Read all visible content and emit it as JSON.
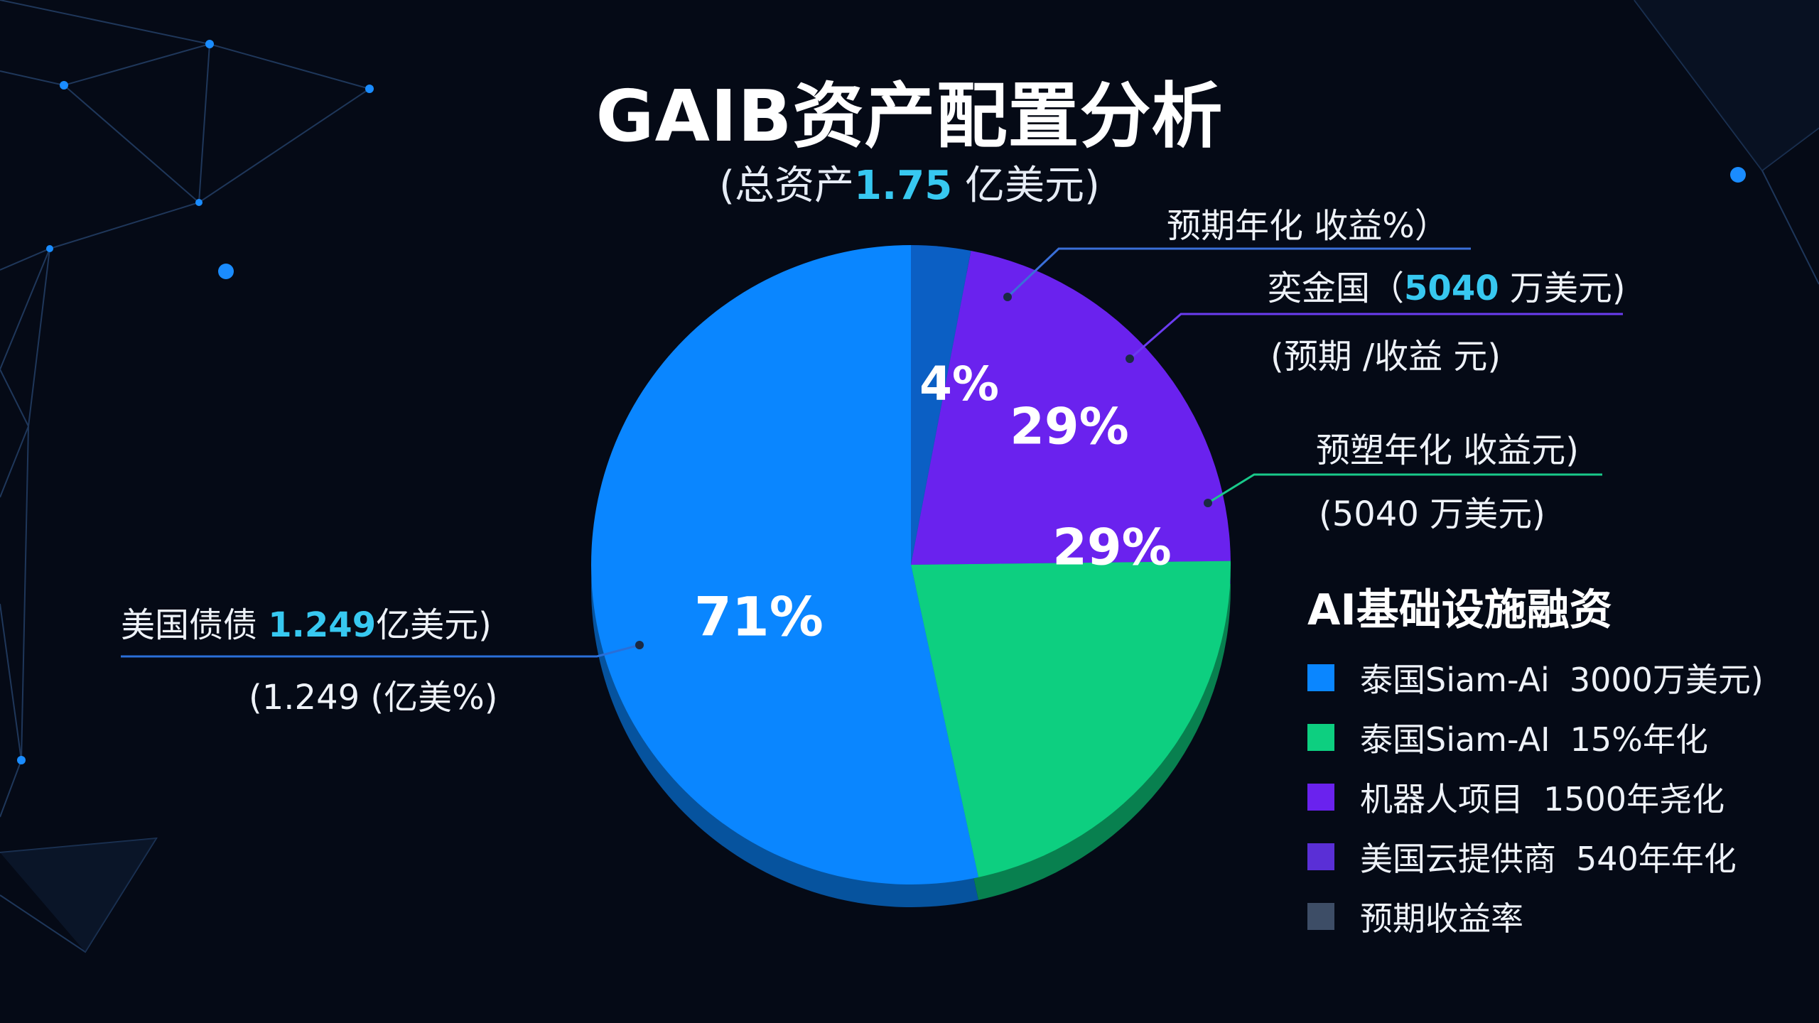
{
  "title": "GAIB资产配置分析",
  "subtitle": {
    "prefix": "(总资产",
    "value": "1.75",
    "suffix": " 亿美元)"
  },
  "colors": {
    "background": "#050a16",
    "highlight": "#37c8f0",
    "us_bonds": "#0a86ff",
    "dark_blue": "#0b5fc4",
    "purple": "#6a22ee",
    "green": "#0dcf80"
  },
  "chart_data": {
    "type": "pie",
    "slices": [
      {
        "label": "4%",
        "value": 4,
        "color": "#0b5fc4"
      },
      {
        "label": "29%",
        "value": 29,
        "color": "#6a22ee"
      },
      {
        "label": "29%",
        "value": 29,
        "color": "#0dcf80"
      },
      {
        "label": "71%",
        "value": 71,
        "color": "#0a86ff"
      }
    ],
    "annotations": [
      {
        "id": "top",
        "line1": "预期年化 收益%）"
      },
      {
        "id": "purple",
        "line1_prefix": "奕金国（",
        "line1_value": "5040",
        "line1_suffix": " 万美元)",
        "line2": "(预期 /收益 元)"
      },
      {
        "id": "green",
        "line1": "预塑年化 收益元)",
        "line2": "(5040 万美元)"
      },
      {
        "id": "left",
        "line1_prefix": "美国债债 ",
        "line1_value": "1.249",
        "line1_suffix": "亿美元)",
        "line2": "(1.249 (亿美%)"
      }
    ],
    "legend_title": "AI基础设施融资",
    "legend": [
      {
        "label": "泰国Siam-Ai",
        "value": "3000万美元)",
        "color": "#0a86ff"
      },
      {
        "label": "泰国Siam-AI",
        "value": "15%年化",
        "color": "#0dcf80"
      },
      {
        "label": "机器人项目",
        "value": "1500年尧化",
        "color": "#6a22ee"
      },
      {
        "label": "美国云提供商",
        "value": "540年年化",
        "color": "#5a2fd6"
      },
      {
        "label": "预期收益率",
        "value": "",
        "color": "#3d4d66"
      }
    ]
  }
}
